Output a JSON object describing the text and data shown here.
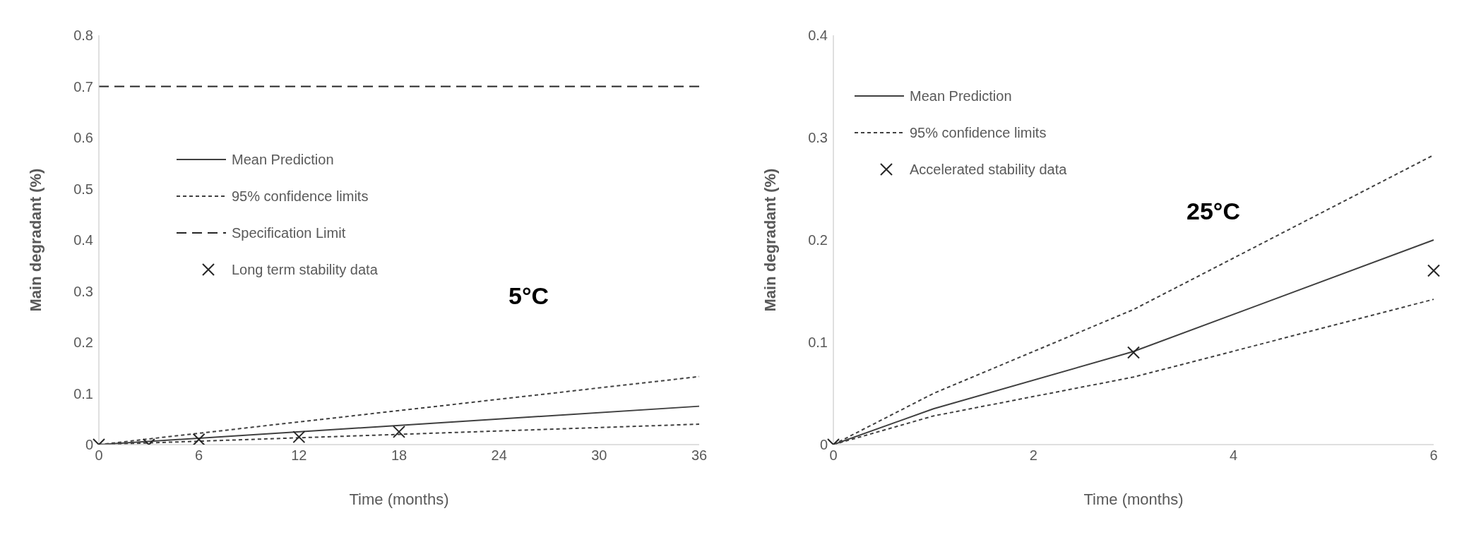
{
  "chart_data": [
    {
      "type": "line",
      "xlabel": "Time (months)",
      "ylabel": "Main degradant (%)",
      "xlim": [
        0,
        36
      ],
      "xticks": [
        0,
        6,
        12,
        18,
        24,
        30,
        36
      ],
      "ylim": [
        0,
        0.8
      ],
      "yticks": [
        0,
        0.1,
        0.2,
        0.3,
        0.4,
        0.5,
        0.6,
        0.7,
        0.8
      ],
      "grid": false,
      "legend": "left",
      "annotations": [
        "5°C"
      ],
      "series": [
        {
          "name": "Mean Prediction",
          "color": "#404040",
          "line_style": "solid",
          "x": [
            0,
            36
          ],
          "values": [
            0,
            0.075
          ]
        },
        {
          "name": "95% confidence limits",
          "color": "#404040",
          "line_style": "dotted",
          "x": [
            0,
            36
          ],
          "values": [
            0,
            0.133
          ]
        },
        {
          "color": "#404040",
          "line_style": "dotted",
          "x": [
            0,
            36
          ],
          "values": [
            0,
            0.04
          ]
        },
        {
          "name": "Specification Limit",
          "color": "#262626",
          "line_style": "dashed",
          "x": [
            0,
            36
          ],
          "values": [
            0.7,
            0.7
          ]
        },
        {
          "type": "scatter",
          "name": "Long term stability data",
          "color": "#262626",
          "marker": "cross",
          "x": [
            0,
            3,
            6,
            12,
            18
          ],
          "values": [
            0,
            0,
            0.01,
            0.015,
            0.025
          ]
        }
      ]
    },
    {
      "type": "line",
      "xlabel": "Time (months)",
      "ylabel": "Main degradant (%)",
      "xlim": [
        0,
        6
      ],
      "xticks": [
        0,
        2,
        4,
        6
      ],
      "ylim": [
        0,
        0.4
      ],
      "yticks": [
        0,
        0.1,
        0.2,
        0.3,
        0.4
      ],
      "grid": false,
      "legend": "top left",
      "annotations": [
        "25°C"
      ],
      "series": [
        {
          "name": "Mean Prediction",
          "color": "#404040",
          "line_style": "solid",
          "x": [
            0,
            1,
            3,
            6
          ],
          "values": [
            0,
            0.035,
            0.091,
            0.2
          ]
        },
        {
          "name": "95% confidence limits",
          "color": "#404040",
          "line_style": "dotted",
          "x": [
            0,
            1,
            3,
            6
          ],
          "values": [
            0,
            0.05,
            0.132,
            0.283
          ]
        },
        {
          "color": "#404040",
          "line_style": "dotted",
          "x": [
            0,
            1,
            3,
            6
          ],
          "values": [
            0,
            0.028,
            0.066,
            0.142
          ]
        },
        {
          "type": "scatter",
          "name": "Accelerated stability data",
          "color": "#262626",
          "marker": "cross",
          "x": [
            0,
            3,
            6
          ],
          "values": [
            0,
            0.09,
            0.17
          ]
        }
      ]
    }
  ]
}
